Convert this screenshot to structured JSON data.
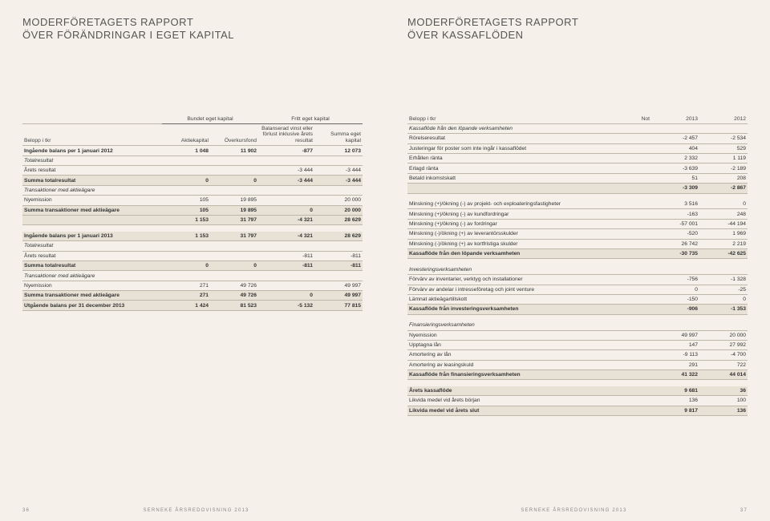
{
  "left": {
    "title": "MODERFÖRETAGETS RAPPORT\nÖVER FÖRÄNDRINGAR I EGET KAPITAL",
    "grouphead_a": "Bundet eget kapital",
    "grouphead_b": "Fritt eget kapital",
    "cols": [
      "Belopp i tkr",
      "Aktiekapital",
      "Överkursfond",
      "Balanserad vinst eller förlust inklusive årets resultat",
      "Summa eget kapital"
    ],
    "rows": [
      {
        "l": "Ingående balans per 1 januari 2012",
        "c": [
          "1 048",
          "11 902",
          "-877",
          "12 073"
        ],
        "cls": "bold"
      },
      {
        "l": "Totalresultat",
        "c": [
          "",
          "",
          "",
          ""
        ],
        "cls": "it"
      },
      {
        "l": "Årets resultat",
        "c": [
          "",
          "",
          "-3 444",
          "-3 444"
        ]
      },
      {
        "l": "Summa totalresultat",
        "c": [
          "0",
          "0",
          "-3 444",
          "-3 444"
        ],
        "cls": "bold shade"
      },
      {
        "l": "Transaktioner med aktieägare",
        "c": [
          "",
          "",
          "",
          ""
        ],
        "cls": "it"
      },
      {
        "l": "Nyemission",
        "c": [
          "105",
          "19 895",
          "",
          "20 000"
        ]
      },
      {
        "l": "Summa transaktioner med aktieägare",
        "c": [
          "105",
          "19 895",
          "0",
          "20 000"
        ],
        "cls": "bold shade"
      },
      {
        "l": "",
        "c": [
          "1 153",
          "31 797",
          "-4 321",
          "28 629"
        ],
        "cls": "bold shade"
      },
      {
        "l": "",
        "c": [
          "",
          "",
          "",
          ""
        ],
        "cls": "spacer"
      },
      {
        "l": "Ingående balans per 1 januari 2013",
        "c": [
          "1 153",
          "31 797",
          "-4 321",
          "28 629"
        ],
        "cls": "bold shade"
      },
      {
        "l": "Totalresultat",
        "c": [
          "",
          "",
          "",
          ""
        ],
        "cls": "it"
      },
      {
        "l": "Årets resultat",
        "c": [
          "",
          "",
          "-811",
          "-811"
        ]
      },
      {
        "l": "Summa totalresultat",
        "c": [
          "0",
          "0",
          "-811",
          "-811"
        ],
        "cls": "bold shade"
      },
      {
        "l": "Transaktioner med aktieägare",
        "c": [
          "",
          "",
          "",
          ""
        ],
        "cls": "it"
      },
      {
        "l": "Nyemission",
        "c": [
          "271",
          "49 726",
          "",
          "49 997"
        ]
      },
      {
        "l": "Summa transaktioner med aktieägare",
        "c": [
          "271",
          "49 726",
          "0",
          "49 997"
        ],
        "cls": "bold shade"
      },
      {
        "l": "Utgående balans per 31 december 2013",
        "c": [
          "1 424",
          "81 523",
          "-5 132",
          "77 815"
        ],
        "cls": "bold shade"
      }
    ],
    "footer_page": "36",
    "footer_text": "SERNEKE ÅRSREDOVISNING 2013"
  },
  "right": {
    "title": "MODERFÖRETAGETS RAPPORT\nÖVER KASSAFLÖDEN",
    "cols": [
      "Belopp i tkr",
      "Not",
      "2013",
      "2012"
    ],
    "rows": [
      {
        "l": "Kassaflöde från den löpande verksamheten",
        "c": [
          "",
          "",
          ""
        ],
        "cls": "it"
      },
      {
        "l": "Rörelseresultat",
        "c": [
          "",
          "-2 457",
          "-2 534"
        ]
      },
      {
        "l": "Justeringar för poster som inte ingår i kassaflödet",
        "c": [
          "",
          "404",
          "529"
        ]
      },
      {
        "l": "Erhållen ränta",
        "c": [
          "",
          "2 332",
          "1 119"
        ]
      },
      {
        "l": "Erlagd ränta",
        "c": [
          "",
          "-3 639",
          "-2 189"
        ]
      },
      {
        "l": "Betald inkomstskatt",
        "c": [
          "",
          "51",
          "208"
        ]
      },
      {
        "l": "",
        "c": [
          "",
          "-3 309",
          "-2 867"
        ],
        "cls": "bold shade"
      },
      {
        "l": "",
        "c": [
          "",
          "",
          ""
        ],
        "cls": "spacer"
      },
      {
        "l": "Minskning (+)/ökning (-) av projekt- och exploateringsfastigheter",
        "c": [
          "",
          "3 516",
          "0"
        ]
      },
      {
        "l": "Minskning (+)/ökning (-) av kundfordringar",
        "c": [
          "",
          "-163",
          "248"
        ]
      },
      {
        "l": "Minskning (+)/ökning (-) av fordringar",
        "c": [
          "",
          "-57 001",
          "-44 194"
        ]
      },
      {
        "l": "Minskning (-)/ökning (+) av leverantörsskulder",
        "c": [
          "",
          "-520",
          "1 969"
        ]
      },
      {
        "l": "Minskning (-)/ökning (+) av kortfristiga skulder",
        "c": [
          "",
          "26 742",
          "2 219"
        ]
      },
      {
        "l": "Kassaflöde från den löpande verksamheten",
        "c": [
          "",
          "-30 735",
          "-42 625"
        ],
        "cls": "bold shade"
      },
      {
        "l": "",
        "c": [
          "",
          "",
          ""
        ],
        "cls": "spacer"
      },
      {
        "l": "Investeringsverksamheten",
        "c": [
          "",
          "",
          ""
        ],
        "cls": "it"
      },
      {
        "l": "Förvärv av inventarier, verktyg och installationer",
        "c": [
          "",
          "-756",
          "-1 328"
        ]
      },
      {
        "l": "Förvärv av andelar i intresseföretag och joint venture",
        "c": [
          "",
          "0",
          "-25"
        ]
      },
      {
        "l": "Lämnat aktieägartillskott",
        "c": [
          "",
          "-150",
          "0"
        ]
      },
      {
        "l": "Kassaflöde från investeringsverksamheten",
        "c": [
          "",
          "-906",
          "-1 353"
        ],
        "cls": "bold shade"
      },
      {
        "l": "",
        "c": [
          "",
          "",
          ""
        ],
        "cls": "spacer"
      },
      {
        "l": "Finansieringsverksamheten",
        "c": [
          "",
          "",
          ""
        ],
        "cls": "it"
      },
      {
        "l": "Nyemission",
        "c": [
          "",
          "49 997",
          "20 000"
        ]
      },
      {
        "l": "Upptagna lån",
        "c": [
          "",
          "147",
          "27 992"
        ]
      },
      {
        "l": "Amortering av lån",
        "c": [
          "",
          "-9 113",
          "-4 700"
        ]
      },
      {
        "l": "Amortering av leasingskuld",
        "c": [
          "",
          "291",
          "722"
        ]
      },
      {
        "l": "Kassaflöde från finansieringsverksamheten",
        "c": [
          "",
          "41 322",
          "44 014"
        ],
        "cls": "bold shade"
      },
      {
        "l": "",
        "c": [
          "",
          "",
          ""
        ],
        "cls": "spacer"
      },
      {
        "l": "Årets kassaflöde",
        "c": [
          "",
          "9 681",
          "36"
        ],
        "cls": "bold shade"
      },
      {
        "l": "Likvida medel vid årets början",
        "c": [
          "",
          "136",
          "100"
        ]
      },
      {
        "l": "Likvida medel vid årets slut",
        "c": [
          "",
          "9 817",
          "136"
        ],
        "cls": "bold shade"
      }
    ],
    "footer_page": "37",
    "footer_text": "SERNEKE ÅRSREDOVISNING 2013"
  }
}
